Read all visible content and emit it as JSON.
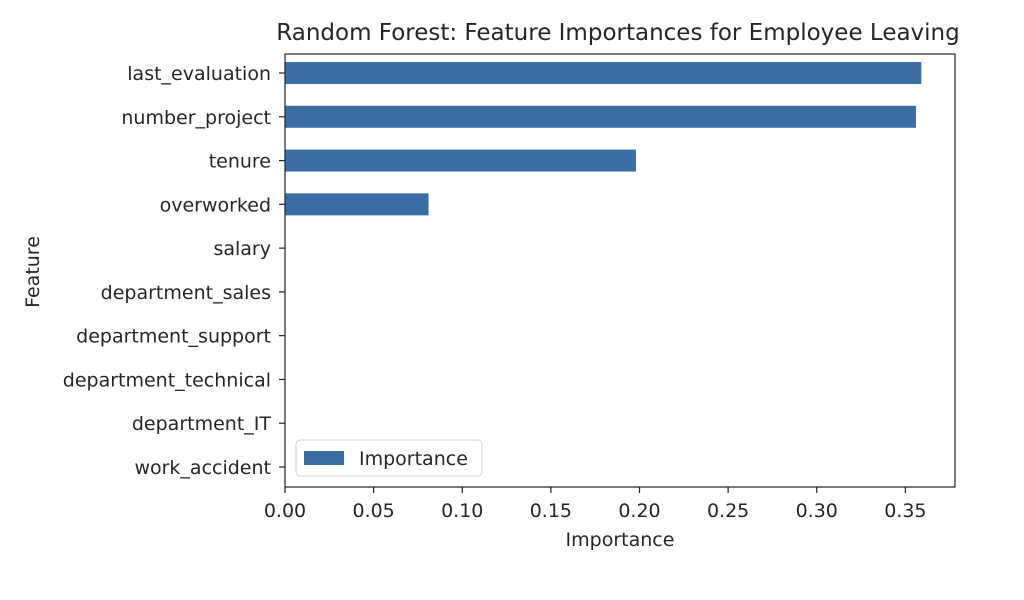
{
  "chart_data": {
    "type": "bar",
    "orientation": "horizontal",
    "title": "Random Forest: Feature Importances for Employee Leaving",
    "xlabel": "Importance",
    "ylabel": "Feature",
    "xlim": [
      0,
      0.378
    ],
    "xticks": [
      0.0,
      0.05,
      0.1,
      0.15,
      0.2,
      0.25,
      0.3,
      0.35
    ],
    "xtick_labels": [
      "0.00",
      "0.05",
      "0.10",
      "0.15",
      "0.20",
      "0.25",
      "0.30",
      "0.35"
    ],
    "categories": [
      "last_evaluation",
      "number_project",
      "tenure",
      "overworked",
      "salary",
      "department_sales",
      "department_support",
      "department_technical",
      "department_IT",
      "work_accident"
    ],
    "series": [
      {
        "name": "Importance",
        "color": "#3a6ea5",
        "values": [
          0.359,
          0.356,
          0.198,
          0.081,
          0.0,
          0.0,
          0.0,
          0.0,
          0.0,
          0.0
        ]
      }
    ],
    "legend": {
      "position": "lower-left",
      "entries": [
        "Importance"
      ]
    },
    "grid": false
  }
}
